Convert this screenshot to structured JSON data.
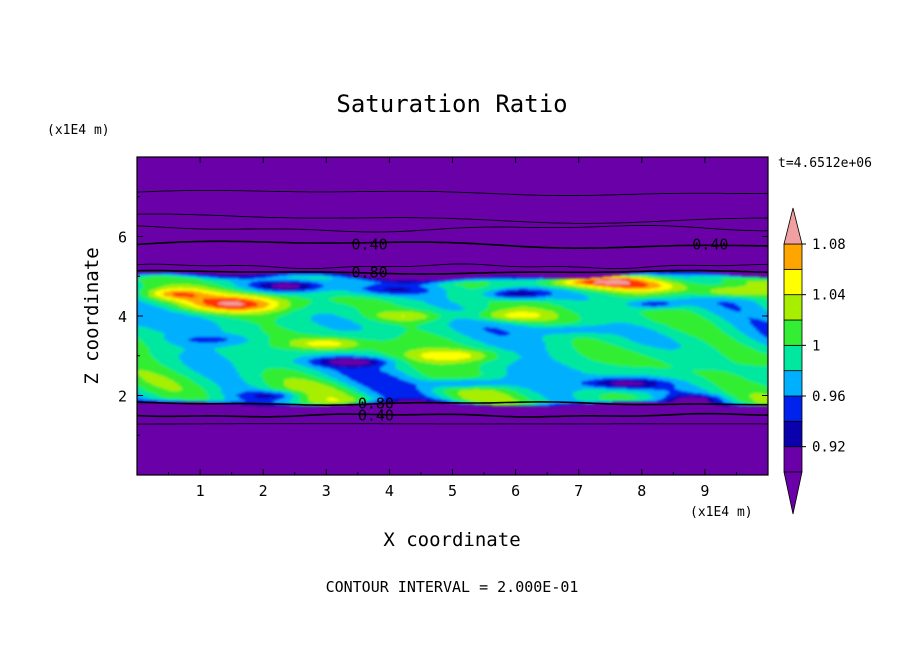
{
  "chart_data": {
    "type": "heatmap",
    "title": "Saturation Ratio",
    "time_label": "t=4.6512e+06",
    "xlabel": "X coordinate",
    "ylabel": "Z coordinate",
    "x_unit": "(x1E4 m)",
    "y_unit": "(x1E4 m)",
    "xlim": [
      0,
      10
    ],
    "ylim": [
      0,
      8
    ],
    "x_ticks": [
      1,
      2,
      3,
      4,
      5,
      6,
      7,
      8,
      9
    ],
    "y_ticks": [
      2,
      4,
      6
    ],
    "footer": "CONTOUR INTERVAL = 2.000E-01",
    "colorbar": {
      "levels": [
        0.9,
        0.92,
        0.94,
        0.96,
        0.98,
        1.0,
        1.02,
        1.04,
        1.06,
        1.08,
        1.1
      ],
      "tick_labels": [
        "0.92",
        "0.96",
        "1",
        "1.04",
        "1.08"
      ],
      "tick_values": [
        0.92,
        0.96,
        1.0,
        1.04,
        1.08
      ],
      "colors": [
        "#6a00a8",
        "#0a00ac",
        "#0022ee",
        "#00b0ff",
        "#00e8a0",
        "#33ee33",
        "#a8ee00",
        "#ffff00",
        "#ffa500",
        "#ff3000",
        "#f0a0a0"
      ],
      "extend": "both"
    },
    "contour_lines": [
      {
        "label": "0.40",
        "z": 5.8
      },
      {
        "label": "0.80",
        "z": 5.1
      },
      {
        "label": "0.80",
        "z": 1.8
      },
      {
        "label": "0.40",
        "z": 1.5
      }
    ],
    "background_value_color": "#6a00a8",
    "moist_layer_z": [
      1.8,
      5.0
    ]
  }
}
